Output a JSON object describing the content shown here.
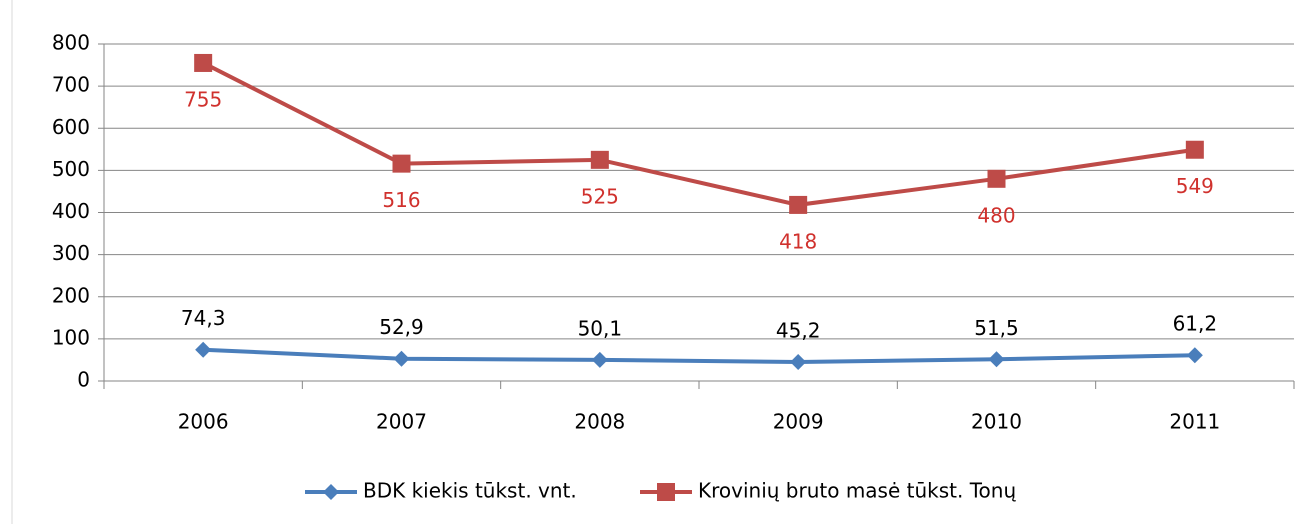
{
  "chart_data": {
    "type": "line",
    "categories": [
      "2006",
      "2007",
      "2008",
      "2009",
      "2010",
      "2011"
    ],
    "series": [
      {
        "name": "BDK kiekis tūkst. vnt.",
        "color": "#4a7ebb",
        "values": [
          74.3,
          52.9,
          50.1,
          45.2,
          51.5,
          61.2
        ],
        "value_labels": [
          "74,3",
          "52,9",
          "50,1",
          "45,2",
          "51,5",
          "61,2"
        ]
      },
      {
        "name": "Krovinių bruto masė tūkst. Tonų",
        "color": "#be4b48",
        "values": [
          755,
          516,
          525,
          418,
          480,
          549
        ]
      }
    ],
    "ylim": [
      0,
      800
    ],
    "yticks": [
      0,
      100,
      200,
      300,
      400,
      500,
      600,
      700,
      800
    ],
    "grid": true,
    "legend": "bottom"
  }
}
